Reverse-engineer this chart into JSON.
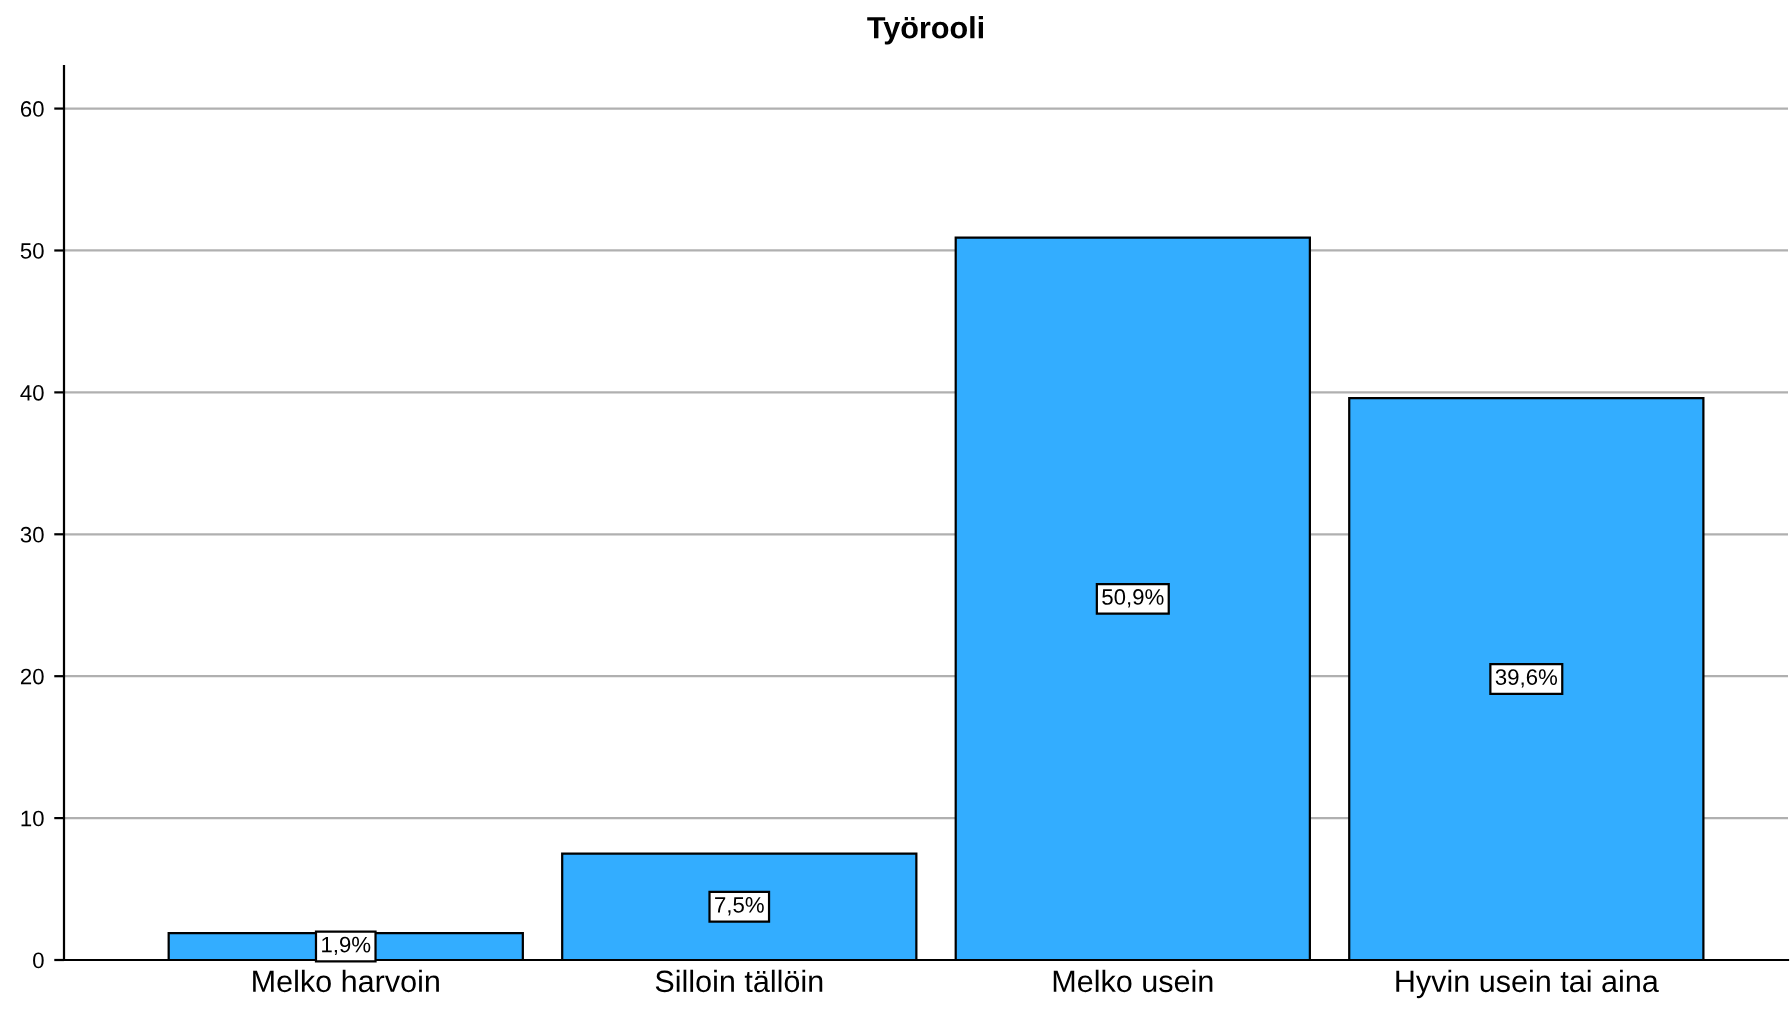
{
  "chart_data": {
    "type": "bar",
    "title": "Työrooli",
    "categories": [
      "Melko harvoin",
      "Silloin tällöin",
      "Melko usein",
      "Hyvin usein tai aina"
    ],
    "values": [
      1.9,
      7.5,
      50.9,
      39.6
    ],
    "value_labels": [
      "1,9%",
      "7,5%",
      "50,9%",
      "39,6%"
    ],
    "color": "#33adff",
    "ylim": [
      0,
      63
    ],
    "yticks": [
      0,
      10,
      20,
      30,
      40,
      50,
      60
    ],
    "grid": "y"
  }
}
